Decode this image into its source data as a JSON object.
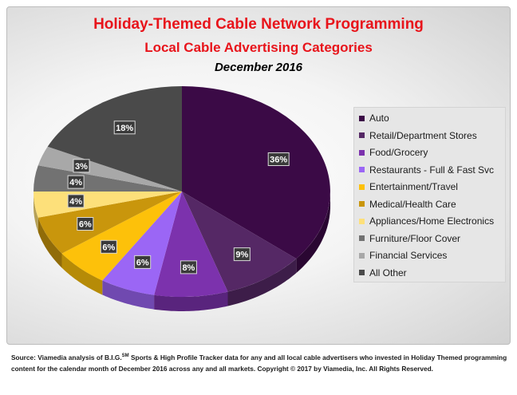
{
  "header": {
    "title": "Holiday-Themed Cable Network Programming",
    "subtitle": "Local Cable Advertising Categories",
    "date": "December 2016"
  },
  "colors": {
    "title": "#e8141b",
    "auto": "#3b0a46",
    "retail": "#552865",
    "food": "#7c32ad",
    "restaurants": "#9b66f5",
    "entertainment": "#fdc10a",
    "medical": "#c9960c",
    "appliances": "#fde07a",
    "furniture": "#727272",
    "financial": "#a8a8a8",
    "other": "#4a4a4a"
  },
  "chart_data": {
    "type": "pie",
    "title": "Holiday-Themed Cable Network Programming",
    "subtitle": "Local Cable Advertising Categories",
    "categories": [
      "Auto",
      "Retail/Department Stores",
      "Food/Grocery",
      "Restaurants - Full & Fast Svc",
      "Entertainment/Travel",
      "Medical/Health Care",
      "Appliances/Home Electronics",
      "Furniture/Floor Cover",
      "Financial Services",
      "All Other"
    ],
    "values": [
      36,
      9,
      8,
      6,
      6,
      6,
      4,
      4,
      3,
      18
    ],
    "labels": [
      "36%",
      "9%",
      "8%",
      "6%",
      "6%",
      "6%",
      "4%",
      "4%",
      "3%",
      "18%"
    ],
    "legend_position": "right"
  },
  "source": {
    "prefix": "Source: Viamedia analysis of B.I.G.",
    "sup": "SM",
    "text": " Sports & High Profile Tracker data for any and all local cable advertisers who invested in Holiday Themed programming content for the calendar month of December 2016 across any and all markets. Copyright © 2017 by Viamedia, Inc. All Rights Reserved."
  }
}
